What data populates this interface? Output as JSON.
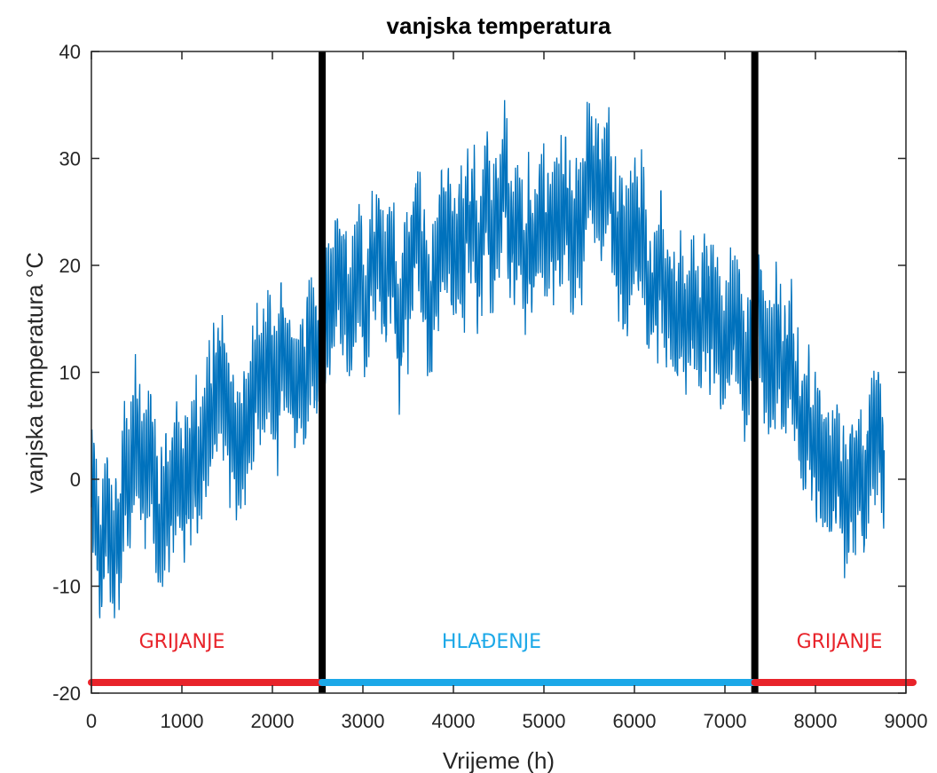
{
  "chart_data": {
    "type": "line",
    "title": "vanjska temperatura",
    "xlabel": "Vrijeme (h)",
    "ylabel": "vanjska temperatura °C",
    "xlim": [
      0,
      9000
    ],
    "ylim": [
      -20,
      40
    ],
    "x_ticks": [
      0,
      1000,
      2000,
      3000,
      4000,
      5000,
      6000,
      7000,
      8000,
      9000
    ],
    "y_ticks": [
      -20,
      -10,
      0,
      10,
      20,
      30,
      40
    ],
    "grid": false,
    "series": [
      {
        "color": "#0072bd",
        "x_start": 0,
        "x_end": 8760,
        "anchors": [
          [
            0,
            -2
          ],
          [
            100,
            -5
          ],
          [
            200,
            -8
          ],
          [
            300,
            -6
          ],
          [
            400,
            -2
          ],
          [
            500,
            4
          ],
          [
            600,
            3
          ],
          [
            700,
            0
          ],
          [
            800,
            -3
          ],
          [
            900,
            -2
          ],
          [
            1000,
            0
          ],
          [
            1100,
            2
          ],
          [
            1200,
            4
          ],
          [
            1300,
            6
          ],
          [
            1400,
            9
          ],
          [
            1500,
            6
          ],
          [
            1600,
            2
          ],
          [
            1700,
            5
          ],
          [
            1800,
            10
          ],
          [
            1900,
            12
          ],
          [
            2000,
            10
          ],
          [
            2100,
            13
          ],
          [
            2200,
            9
          ],
          [
            2300,
            11
          ],
          [
            2400,
            12
          ],
          [
            2500,
            13
          ],
          [
            2600,
            16
          ],
          [
            2700,
            18
          ],
          [
            2800,
            15
          ],
          [
            2900,
            16
          ],
          [
            3000,
            18
          ],
          [
            3100,
            19
          ],
          [
            3200,
            17
          ],
          [
            3300,
            18
          ],
          [
            3400,
            16
          ],
          [
            3500,
            19
          ],
          [
            3600,
            20
          ],
          [
            3700,
            18
          ],
          [
            3800,
            19
          ],
          [
            3900,
            21
          ],
          [
            4000,
            22
          ],
          [
            4100,
            20
          ],
          [
            4200,
            22
          ],
          [
            4300,
            24
          ],
          [
            4400,
            23
          ],
          [
            4500,
            25
          ],
          [
            4600,
            26
          ],
          [
            4700,
            22
          ],
          [
            4800,
            20
          ],
          [
            4900,
            21
          ],
          [
            5000,
            23
          ],
          [
            5100,
            24
          ],
          [
            5200,
            24
          ],
          [
            5300,
            23
          ],
          [
            5400,
            25
          ],
          [
            5500,
            26
          ],
          [
            5600,
            27
          ],
          [
            5700,
            28
          ],
          [
            5800,
            24
          ],
          [
            5900,
            22
          ],
          [
            6000,
            22
          ],
          [
            6100,
            21
          ],
          [
            6200,
            19
          ],
          [
            6300,
            20
          ],
          [
            6400,
            18
          ],
          [
            6500,
            17
          ],
          [
            6600,
            15
          ],
          [
            6700,
            15
          ],
          [
            6800,
            14
          ],
          [
            6900,
            16
          ],
          [
            7000,
            14
          ],
          [
            7100,
            11
          ],
          [
            7200,
            12
          ],
          [
            7300,
            13
          ],
          [
            7400,
            15
          ],
          [
            7500,
            11
          ],
          [
            7600,
            12
          ],
          [
            7700,
            10
          ],
          [
            7800,
            8
          ],
          [
            7900,
            3
          ],
          [
            8000,
            5
          ],
          [
            8100,
            3
          ],
          [
            8200,
            1
          ],
          [
            8300,
            -1
          ],
          [
            8400,
            -2
          ],
          [
            8500,
            1
          ],
          [
            8600,
            0
          ],
          [
            8700,
            4
          ],
          [
            8760,
            0
          ]
        ],
        "min": -13,
        "max": 37
      }
    ],
    "vertical_lines": [
      {
        "x": 2550,
        "color": "#000000"
      },
      {
        "x": 7330,
        "color": "#000000"
      }
    ],
    "period_bars": [
      {
        "label": "GRIJANJE",
        "x_from": 0,
        "x_to": 2550,
        "y": -19,
        "color": "#e8232a"
      },
      {
        "label": "HLAĐENJE",
        "x_from": 2550,
        "x_to": 7330,
        "y": -19,
        "color": "#1ba8e8"
      },
      {
        "label": "GRIJANJE",
        "x_from": 7330,
        "x_to": 9000,
        "y": -19,
        "color": "#e8232a"
      }
    ]
  }
}
